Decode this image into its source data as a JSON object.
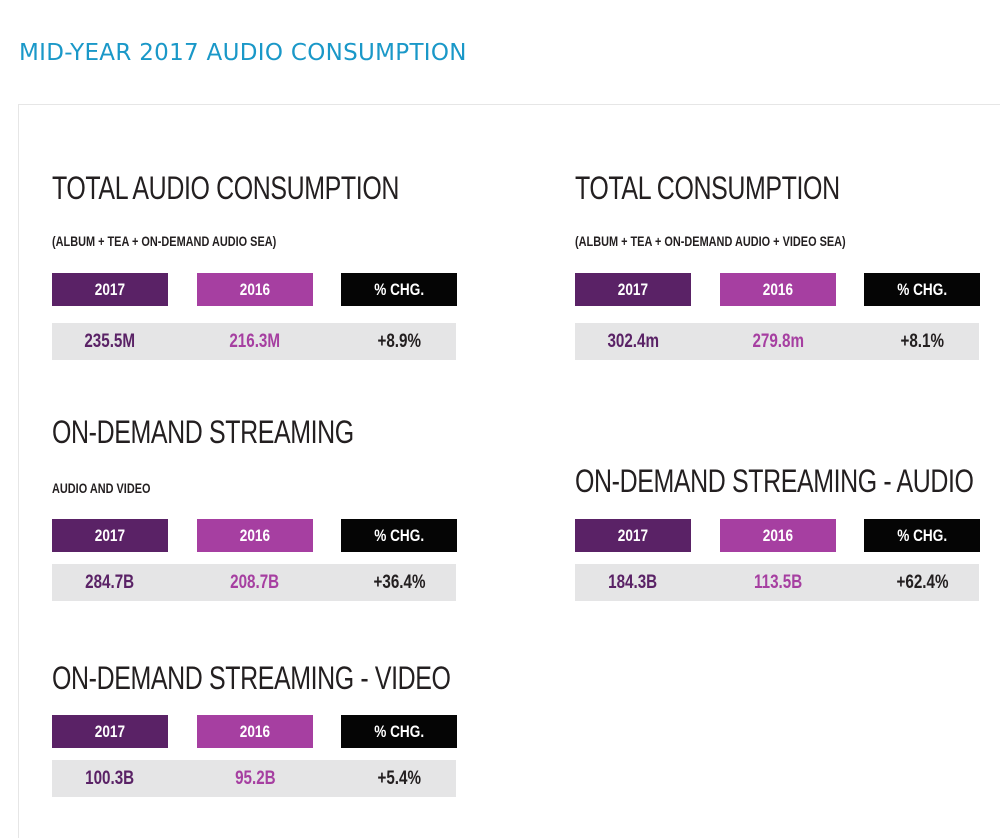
{
  "page": {
    "title": "MID-YEAR 2017 AUDIO CONSUMPTION"
  },
  "colors": {
    "title_blue": "#1a98c8",
    "col_2017": "#5a2266",
    "col_2016": "#a63fa1",
    "col_chg": "#050505",
    "value_row_bg": "#e5e5e6"
  },
  "cards": {
    "total_audio": {
      "heading": "TOTAL AUDIO CONSUMPTION",
      "subheading": "(ALBUM + TEA + ON-DEMAND AUDIO SEA)",
      "headers": [
        "2017",
        "2016",
        "% CHG."
      ],
      "values": [
        "235.5M",
        "216.3M",
        "+8.9%"
      ]
    },
    "total": {
      "heading": "TOTAL CONSUMPTION",
      "subheading": "(ALBUM + TEA + ON-DEMAND AUDIO + VIDEO SEA)",
      "headers": [
        "2017",
        "2016",
        "% CHG."
      ],
      "values": [
        "302.4m",
        "279.8m",
        "+8.1%"
      ]
    },
    "streaming": {
      "heading": "ON-DEMAND STREAMING",
      "subheading": "AUDIO AND VIDEO",
      "headers": [
        "2017",
        "2016",
        "% CHG."
      ],
      "values": [
        "284.7B",
        "208.7B",
        "+36.4%"
      ]
    },
    "streaming_audio": {
      "heading": "ON-DEMAND STREAMING - AUDIO",
      "headers": [
        "2017",
        "2016",
        "% CHG."
      ],
      "values": [
        "184.3B",
        "113.5B",
        "+62.4%"
      ]
    },
    "streaming_video": {
      "heading": "ON-DEMAND STREAMING - VIDEO",
      "headers": [
        "2017",
        "2016",
        "% CHG."
      ],
      "values": [
        "100.3B",
        "95.2B",
        "+5.4%"
      ]
    }
  }
}
